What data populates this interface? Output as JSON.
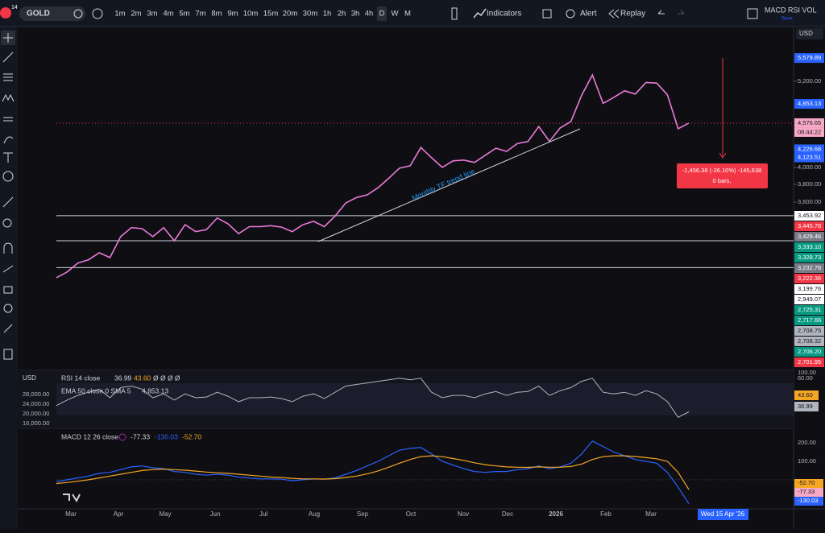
{
  "toolbar": {
    "badge": "14",
    "symbol": "GOLD",
    "intervals": [
      "1m",
      "2m",
      "3m",
      "4m",
      "5m",
      "7m",
      "8m",
      "9m",
      "10m",
      "15m",
      "20m",
      "30m",
      "1h",
      "2h",
      "3h",
      "4h",
      "D",
      "W",
      "M"
    ],
    "indicators": "Indicators",
    "alert": "Alert",
    "replay": "Replay",
    "layout_name": "MACD RSI VOL",
    "save": "Save"
  },
  "currency": "USD",
  "price_chart": {
    "type": "line",
    "log_scale": true,
    "color": "#e879d8",
    "ylim": [
      2157,
      6140
    ],
    "closes": [
      2860,
      2910,
      2990,
      3020,
      3085,
      3040,
      3240,
      3330,
      3320,
      3240,
      3330,
      3200,
      3360,
      3290,
      3310,
      3430,
      3370,
      3270,
      3340,
      3340,
      3350,
      3335,
      3290,
      3360,
      3395,
      3340,
      3450,
      3590,
      3650,
      3680,
      3760,
      3870,
      3990,
      4020,
      4250,
      4120,
      4000,
      4080,
      4090,
      4060,
      4150,
      4240,
      4200,
      4300,
      4330,
      4530,
      4330,
      4510,
      4600,
      4980,
      5300,
      4860,
      4950,
      5050,
      5000,
      5180,
      5170,
      4990,
      4500,
      4576.65
    ],
    "axis_labels": [
      {
        "value": 5579.89,
        "label": "5,579.89",
        "color": "#2962ff"
      },
      {
        "value": 5200,
        "label": "5,200.00"
      },
      {
        "value": 4853.13,
        "label": "4,853.13",
        "color": "#2962ff"
      },
      {
        "value": 4576.65,
        "label": "4,576.65",
        "color": "#f7a9c4"
      },
      {
        "value": 4226.68,
        "label": "4,226.68",
        "color": "#2962ff"
      },
      {
        "value": 4123.51,
        "label": "4,123.51",
        "color": "#2962ff"
      },
      {
        "value": 4000,
        "label": "4,000.00"
      },
      {
        "value": 3800,
        "label": "3,800.00"
      },
      {
        "value": 3600,
        "label": "3,600.00"
      }
    ],
    "countdown": "08:44:22",
    "label_stack": [
      {
        "label": "3,453.92",
        "color": "#ffffff"
      },
      {
        "label": "3,445.78",
        "color": "#f23645"
      },
      {
        "label": "3,429.46",
        "color": "#787b86"
      },
      {
        "label": "3,333.10",
        "color": "#089981"
      },
      {
        "label": "3,328.73",
        "color": "#089981"
      },
      {
        "label": "3,232.78",
        "color": "#787b86"
      },
      {
        "label": "3,222.36",
        "color": "#f23645"
      },
      {
        "label": "3,199.76",
        "color": "#ffffff"
      },
      {
        "label": "2,949.07",
        "color": "#ffffff"
      },
      {
        "label": "2,725.31",
        "color": "#089981"
      },
      {
        "label": "2,717.66",
        "color": "#089981"
      },
      {
        "label": "2,708.75",
        "color": "#b2b5be"
      },
      {
        "label": "2,708.32",
        "color": "#b2b5be"
      },
      {
        "label": "2,706.20",
        "color": "#089981"
      },
      {
        "label": "2,701.95",
        "color": "#f23645"
      }
    ],
    "levels": [
      3453.92,
      3199.76,
      2949.07
    ],
    "annotation": "Monthly TF trend line",
    "measure": {
      "text": "-1,456.38 (-26.10%) -145,638",
      "bars": "0 bars,"
    }
  },
  "rsi": {
    "title": "RSI 14 close",
    "readings": [
      "36.99",
      "43.60"
    ],
    "extra": "Ø Ø Ø Ø",
    "overlay_title": "EMA 50 close 0 SMA 5",
    "overlay_value": "4,853.13",
    "left_labels": [
      "28,000.00",
      "24,000.00",
      "20,000.00",
      "16,000.00"
    ],
    "axis_labels": [
      "100.00",
      "60.00",
      "43.60",
      "36.99"
    ],
    "ylim": [
      20,
      88
    ],
    "color": "#b2b5be",
    "values": [
      45,
      52,
      58,
      62,
      66,
      55,
      68,
      70,
      66,
      55,
      60,
      52,
      60,
      55,
      56,
      62,
      57,
      50,
      55,
      55,
      56,
      54,
      50,
      57,
      60,
      54,
      62,
      70,
      72,
      74,
      76,
      78,
      80,
      78,
      80,
      62,
      55,
      58,
      58,
      55,
      60,
      63,
      58,
      62,
      63,
      70,
      58,
      64,
      68,
      76,
      80,
      62,
      60,
      62,
      58,
      64,
      60,
      50,
      30,
      36.99
    ]
  },
  "macd": {
    "title": "MACD 12 26 close",
    "readings": [
      "-77.33",
      "-130.03",
      "-52.70"
    ],
    "axis_labels": [
      "200.00",
      "100.00",
      "-52.70",
      "-77.33",
      "-130.03"
    ],
    "ylim": [
      -140,
      222
    ],
    "series": [
      {
        "color": "#2962ff",
        "values": [
          -10,
          0,
          10,
          20,
          35,
          40,
          55,
          70,
          75,
          65,
          60,
          45,
          40,
          30,
          25,
          30,
          25,
          15,
          10,
          5,
          5,
          3,
          -5,
          0,
          5,
          3,
          10,
          30,
          50,
          75,
          100,
          130,
          160,
          170,
          175,
          140,
          100,
          80,
          60,
          45,
          40,
          45,
          45,
          55,
          60,
          75,
          60,
          70,
          90,
          140,
          210,
          180,
          150,
          130,
          110,
          100,
          90,
          40,
          -40,
          -130.03
        ]
      },
      {
        "color": "#f5a623",
        "values": [
          -20,
          -15,
          -8,
          0,
          10,
          20,
          30,
          40,
          50,
          55,
          58,
          55,
          52,
          47,
          42,
          38,
          35,
          30,
          25,
          20,
          15,
          12,
          8,
          5,
          5,
          4,
          6,
          12,
          20,
          32,
          48,
          68,
          90,
          110,
          125,
          130,
          125,
          115,
          105,
          92,
          82,
          75,
          70,
          68,
          67,
          70,
          68,
          68,
          72,
          85,
          110,
          125,
          130,
          130,
          126,
          120,
          114,
          100,
          40,
          -52.7
        ]
      }
    ]
  },
  "time_axis": {
    "labels": [
      "Mar",
      "Apr",
      "May",
      "Jun",
      "Jul",
      "Aug",
      "Sep",
      "Oct",
      "Nov",
      "Dec",
      "2026",
      "Feb",
      "Mar"
    ],
    "cursor": "Wed 15 Apr '26"
  }
}
